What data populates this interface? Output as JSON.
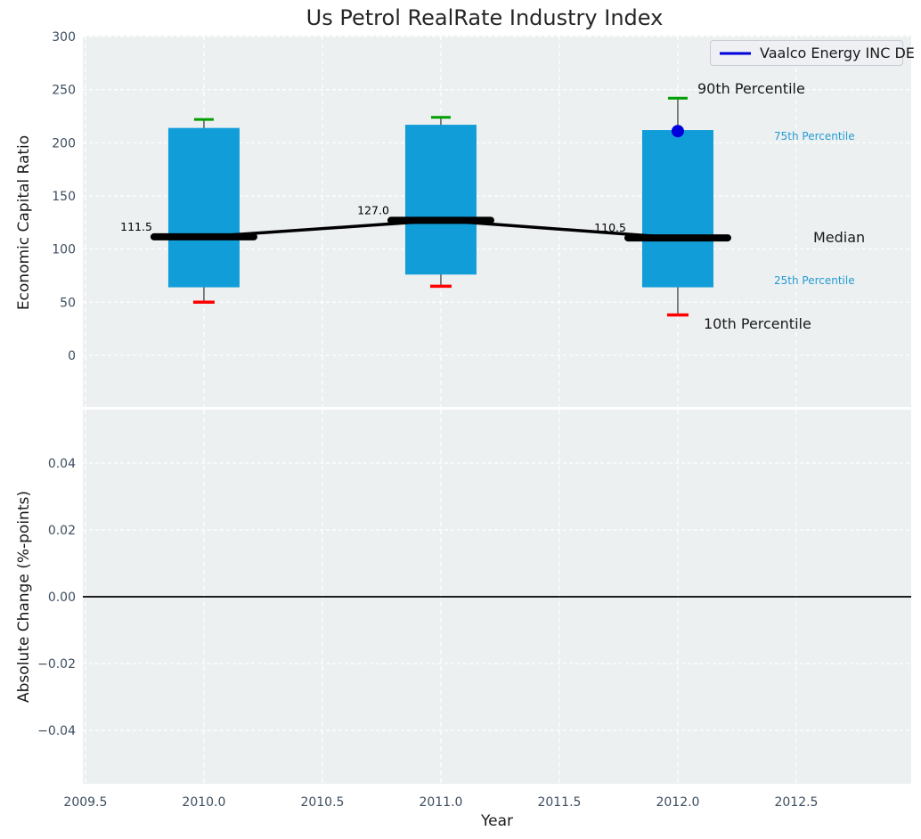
{
  "title": "Us Petrol RealRate Industry Index",
  "legend": {
    "label": "Vaalco Energy INC DE"
  },
  "annotations": {
    "p90": "90th Percentile",
    "p75": "75th Percentile",
    "median": "Median",
    "p25": "25th Percentile",
    "p10": "10th Percentile"
  },
  "colors": {
    "plot_bg": "#ecf0f0",
    "grid": "#ffffff",
    "box_fill": "#119dd8",
    "whisker": "#5a5a5a",
    "cap_top": "#009e00",
    "cap_bottom": "#ff0000",
    "median_line": "#000000",
    "company_marker": "#0000dd",
    "zero_line": "#000000",
    "tick_label": "#3d4e60",
    "annotation_blue": "#259bd4",
    "text_dark": "#1a1a1a"
  },
  "chart_data": [
    {
      "type": "boxplot",
      "title": "Us Petrol RealRate Industry Index",
      "xlabel": "Year",
      "ylabel": "Economic Capital Ratio",
      "xlim": [
        2009.489,
        2012.985
      ],
      "ylim": [
        -48.7,
        300.9
      ],
      "grid": true,
      "legend_position": "upper right",
      "yticks": [
        0,
        50,
        100,
        150,
        200,
        250,
        300
      ],
      "ytick_labels": [
        "0",
        "50",
        "100",
        "150",
        "200",
        "250",
        "300"
      ],
      "xticks": [
        2009.5,
        2010.0,
        2010.5,
        2011.0,
        2011.5,
        2012.0,
        2012.5
      ],
      "boxes": [
        {
          "year": 2010,
          "p10": 50,
          "p25": 64,
          "median": 111.5,
          "p75": 214,
          "p90": 222,
          "median_label": "111.5"
        },
        {
          "year": 2011,
          "p10": 65,
          "p25": 76,
          "median": 127.0,
          "p75": 217,
          "p90": 224,
          "median_label": "127.0"
        },
        {
          "year": 2012,
          "p10": 38,
          "p25": 64,
          "median": 110.5,
          "p75": 212,
          "p90": 242,
          "median_label": "110.5"
        }
      ],
      "company_series": {
        "name": "Vaalco Energy INC DE",
        "points": [
          {
            "x": 2012,
            "y": 211
          }
        ]
      },
      "percentile_annotations": [
        "90th Percentile",
        "75th Percentile",
        "Median",
        "25th Percentile",
        "10th Percentile"
      ]
    },
    {
      "type": "line",
      "xlabel": "Year",
      "ylabel": "Absolute Change (%-points)",
      "xlim": [
        2009.489,
        2012.985
      ],
      "ylim": [
        -0.056,
        0.056
      ],
      "grid": true,
      "yticks": [
        0.04,
        0.02,
        0.0,
        -0.02,
        -0.04
      ],
      "ytick_labels": [
        "0.04",
        "0.02",
        "0.00",
        "−0.02",
        "−0.04"
      ],
      "xticks": [
        2009.5,
        2010.0,
        2010.5,
        2011.0,
        2011.5,
        2012.0,
        2012.5
      ],
      "xtick_labels": [
        "2009.5",
        "2010.0",
        "2010.5",
        "2011.0",
        "2011.5",
        "2012.0",
        "2012.5"
      ],
      "zero_line": 0.0,
      "series": []
    }
  ]
}
